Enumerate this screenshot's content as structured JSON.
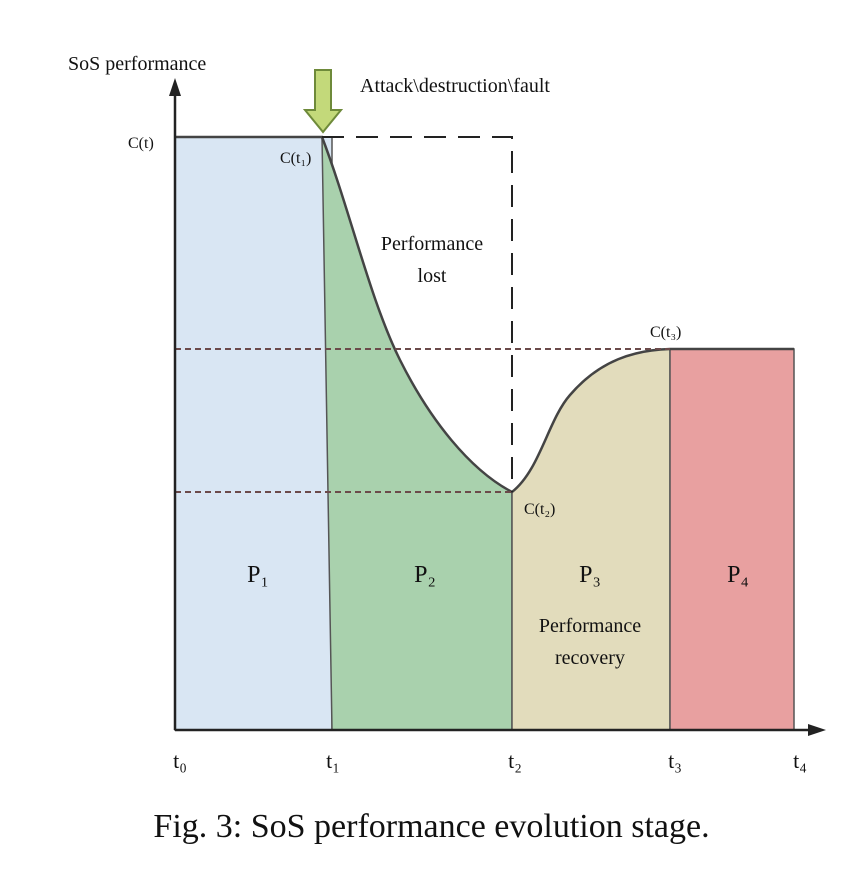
{
  "diagram": {
    "y_axis_label": "SoS performance",
    "event_label": "Attack\\destruction\\fault",
    "levels": {
      "c_t": "C(t)",
      "c_t1": "C(t₁)",
      "c_t2": "C(t₂)",
      "c_t3": "C(t₃)"
    },
    "annotations": {
      "lost_line1": "Performance",
      "lost_line2": "lost",
      "recovery_line1": "Performance",
      "recovery_line2": "recovery"
    },
    "stages": [
      {
        "label": "P₁",
        "color": "#d9e6f3"
      },
      {
        "label": "P₂",
        "color": "#a9d1ad"
      },
      {
        "label": "P₃",
        "color": "#e2dcbc"
      },
      {
        "label": "P₄",
        "color": "#e8a0a0"
      }
    ],
    "ticks": [
      "t₀",
      "t₁",
      "t₂",
      "t₃",
      "t₄"
    ],
    "arrow_color": "#c3d97a",
    "caption": "Fig. 3: SoS performance evolution stage."
  }
}
